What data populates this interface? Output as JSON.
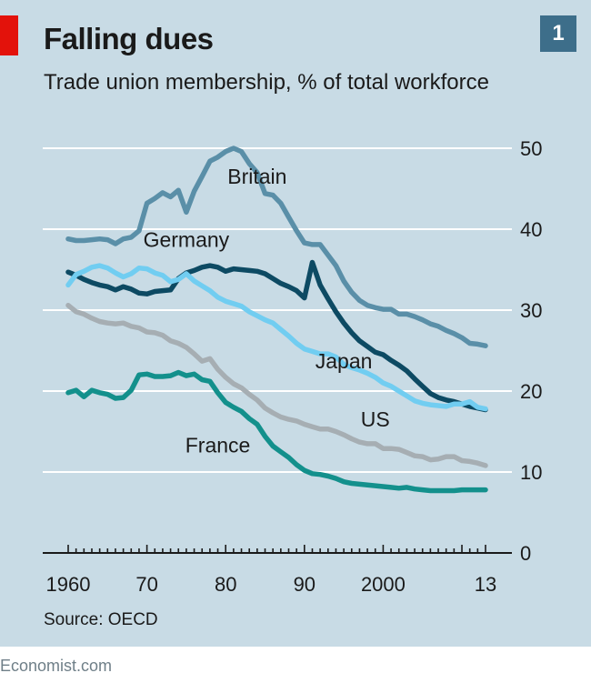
{
  "header": {
    "title": "Falling dues",
    "subtitle": "Trade union membership, % of total workforce",
    "badge": "1"
  },
  "footer": {
    "source": "Source: OECD",
    "credit": "Economist.com"
  },
  "colors": {
    "background": "#c8dbe5",
    "accent_red": "#e3120b",
    "badge": "#3d6e8a",
    "Britain": "#5a8fa8",
    "Germany": "#0d4a63",
    "Japan": "#71cdf1",
    "US": "#a6aeb3",
    "France": "#13908c"
  },
  "chart_data": {
    "type": "line",
    "title": "Falling dues",
    "subtitle": "Trade union membership, % of total workforce",
    "x_range": [
      1960,
      2013
    ],
    "ylim": [
      0,
      50
    ],
    "y_ticks": [
      0,
      10,
      20,
      30,
      40,
      50
    ],
    "x_tick_labels": [
      {
        "x": 1960,
        "label": "1960"
      },
      {
        "x": 1970,
        "label": "70"
      },
      {
        "x": 1980,
        "label": "80"
      },
      {
        "x": 1990,
        "label": "90"
      },
      {
        "x": 2000,
        "label": "2000"
      },
      {
        "x": 2013,
        "label": "13"
      }
    ],
    "y_axis_side": "right",
    "grid": true,
    "series": [
      {
        "name": "Britain",
        "label_at": [
          1984,
          46.5
        ],
        "points": [
          [
            1960,
            38.8
          ],
          [
            1961,
            38.6
          ],
          [
            1962,
            38.6
          ],
          [
            1963,
            38.7
          ],
          [
            1964,
            38.8
          ],
          [
            1965,
            38.7
          ],
          [
            1966,
            38.2
          ],
          [
            1967,
            38.8
          ],
          [
            1968,
            39.0
          ],
          [
            1969,
            39.8
          ],
          [
            1970,
            43.2
          ],
          [
            1971,
            43.8
          ],
          [
            1972,
            44.5
          ],
          [
            1973,
            44.0
          ],
          [
            1974,
            44.8
          ],
          [
            1975,
            42.1
          ],
          [
            1976,
            44.7
          ],
          [
            1977,
            46.5
          ],
          [
            1978,
            48.4
          ],
          [
            1979,
            48.9
          ],
          [
            1980,
            49.6
          ],
          [
            1981,
            50.0
          ],
          [
            1982,
            49.6
          ],
          [
            1983,
            48.1
          ],
          [
            1984,
            47.0
          ],
          [
            1985,
            44.4
          ],
          [
            1986,
            44.2
          ],
          [
            1987,
            43.2
          ],
          [
            1988,
            41.5
          ],
          [
            1989,
            39.8
          ],
          [
            1990,
            38.3
          ],
          [
            1991,
            38.1
          ],
          [
            1992,
            38.1
          ],
          [
            1993,
            36.8
          ],
          [
            1994,
            35.5
          ],
          [
            1995,
            33.6
          ],
          [
            1996,
            32.2
          ],
          [
            1997,
            31.2
          ],
          [
            1998,
            30.6
          ],
          [
            1999,
            30.3
          ],
          [
            2000,
            30.1
          ],
          [
            2001,
            30.1
          ],
          [
            2002,
            29.5
          ],
          [
            2003,
            29.5
          ],
          [
            2004,
            29.2
          ],
          [
            2005,
            28.8
          ],
          [
            2006,
            28.3
          ],
          [
            2007,
            28.0
          ],
          [
            2008,
            27.5
          ],
          [
            2009,
            27.1
          ],
          [
            2010,
            26.6
          ],
          [
            2011,
            25.9
          ],
          [
            2012,
            25.8
          ],
          [
            2013,
            25.6
          ]
        ]
      },
      {
        "name": "Germany",
        "label_at": [
          1975,
          38.7
        ],
        "points": [
          [
            1960,
            34.7
          ],
          [
            1961,
            34.3
          ],
          [
            1962,
            33.8
          ],
          [
            1963,
            33.4
          ],
          [
            1964,
            33.1
          ],
          [
            1965,
            32.9
          ],
          [
            1966,
            32.5
          ],
          [
            1967,
            32.9
          ],
          [
            1968,
            32.6
          ],
          [
            1969,
            32.1
          ],
          [
            1970,
            32.0
          ],
          [
            1971,
            32.3
          ],
          [
            1972,
            32.4
          ],
          [
            1973,
            32.5
          ],
          [
            1974,
            33.9
          ],
          [
            1975,
            34.6
          ],
          [
            1976,
            34.9
          ],
          [
            1977,
            35.3
          ],
          [
            1978,
            35.5
          ],
          [
            1979,
            35.3
          ],
          [
            1980,
            34.8
          ],
          [
            1981,
            35.1
          ],
          [
            1982,
            35.0
          ],
          [
            1983,
            34.9
          ],
          [
            1984,
            34.8
          ],
          [
            1985,
            34.5
          ],
          [
            1986,
            33.9
          ],
          [
            1987,
            33.3
          ],
          [
            1988,
            32.9
          ],
          [
            1989,
            32.4
          ],
          [
            1990,
            31.5
          ],
          [
            1991,
            35.9
          ],
          [
            1992,
            33.1
          ],
          [
            1993,
            31.4
          ],
          [
            1994,
            29.8
          ],
          [
            1995,
            28.4
          ],
          [
            1996,
            27.2
          ],
          [
            1997,
            26.2
          ],
          [
            1998,
            25.5
          ],
          [
            1999,
            24.8
          ],
          [
            2000,
            24.5
          ],
          [
            2001,
            23.8
          ],
          [
            2002,
            23.2
          ],
          [
            2003,
            22.5
          ],
          [
            2004,
            21.5
          ],
          [
            2005,
            20.6
          ],
          [
            2006,
            19.7
          ],
          [
            2007,
            19.2
          ],
          [
            2008,
            18.9
          ],
          [
            2009,
            18.7
          ],
          [
            2010,
            18.4
          ],
          [
            2011,
            18.1
          ],
          [
            2012,
            17.9
          ],
          [
            2013,
            17.7
          ]
        ]
      },
      {
        "name": "Japan",
        "label_at": [
          1995,
          23.7
        ],
        "points": [
          [
            1960,
            33.1
          ],
          [
            1961,
            34.4
          ],
          [
            1962,
            34.8
          ],
          [
            1963,
            35.3
          ],
          [
            1964,
            35.5
          ],
          [
            1965,
            35.2
          ],
          [
            1966,
            34.6
          ],
          [
            1967,
            34.1
          ],
          [
            1968,
            34.5
          ],
          [
            1969,
            35.2
          ],
          [
            1970,
            35.1
          ],
          [
            1971,
            34.6
          ],
          [
            1972,
            34.3
          ],
          [
            1973,
            33.5
          ],
          [
            1974,
            33.8
          ],
          [
            1975,
            34.5
          ],
          [
            1976,
            33.6
          ],
          [
            1977,
            33.0
          ],
          [
            1978,
            32.4
          ],
          [
            1979,
            31.6
          ],
          [
            1980,
            31.1
          ],
          [
            1981,
            30.8
          ],
          [
            1982,
            30.5
          ],
          [
            1983,
            29.8
          ],
          [
            1984,
            29.3
          ],
          [
            1985,
            28.8
          ],
          [
            1986,
            28.4
          ],
          [
            1987,
            27.6
          ],
          [
            1988,
            26.8
          ],
          [
            1989,
            25.9
          ],
          [
            1990,
            25.2
          ],
          [
            1991,
            24.9
          ],
          [
            1992,
            24.6
          ],
          [
            1993,
            24.6
          ],
          [
            1994,
            24.2
          ],
          [
            1995,
            23.3
          ],
          [
            1996,
            22.9
          ],
          [
            1997,
            22.6
          ],
          [
            1998,
            22.2
          ],
          [
            1999,
            21.7
          ],
          [
            2000,
            21.0
          ],
          [
            2001,
            20.6
          ],
          [
            2002,
            20.0
          ],
          [
            2003,
            19.4
          ],
          [
            2004,
            18.8
          ],
          [
            2005,
            18.5
          ],
          [
            2006,
            18.3
          ],
          [
            2007,
            18.2
          ],
          [
            2008,
            18.1
          ],
          [
            2009,
            18.4
          ],
          [
            2010,
            18.4
          ],
          [
            2011,
            18.7
          ],
          [
            2012,
            18.0
          ],
          [
            2013,
            17.8
          ]
        ]
      },
      {
        "name": "US",
        "label_at": [
          1999,
          16.5
        ],
        "points": [
          [
            1960,
            30.6
          ],
          [
            1961,
            29.8
          ],
          [
            1962,
            29.5
          ],
          [
            1963,
            29.0
          ],
          [
            1964,
            28.6
          ],
          [
            1965,
            28.4
          ],
          [
            1966,
            28.3
          ],
          [
            1967,
            28.4
          ],
          [
            1968,
            28.0
          ],
          [
            1969,
            27.8
          ],
          [
            1970,
            27.3
          ],
          [
            1971,
            27.2
          ],
          [
            1972,
            26.9
          ],
          [
            1973,
            26.2
          ],
          [
            1974,
            25.9
          ],
          [
            1975,
            25.4
          ],
          [
            1976,
            24.6
          ],
          [
            1977,
            23.7
          ],
          [
            1978,
            24.0
          ],
          [
            1979,
            22.7
          ],
          [
            1980,
            21.7
          ],
          [
            1981,
            20.9
          ],
          [
            1982,
            20.4
          ],
          [
            1983,
            19.6
          ],
          [
            1984,
            18.9
          ],
          [
            1985,
            17.9
          ],
          [
            1986,
            17.3
          ],
          [
            1987,
            16.8
          ],
          [
            1988,
            16.5
          ],
          [
            1989,
            16.3
          ],
          [
            1990,
            15.9
          ],
          [
            1991,
            15.6
          ],
          [
            1992,
            15.3
          ],
          [
            1993,
            15.3
          ],
          [
            1994,
            15.0
          ],
          [
            1995,
            14.6
          ],
          [
            1996,
            14.1
          ],
          [
            1997,
            13.7
          ],
          [
            1998,
            13.5
          ],
          [
            1999,
            13.5
          ],
          [
            2000,
            12.9
          ],
          [
            2001,
            12.9
          ],
          [
            2002,
            12.8
          ],
          [
            2003,
            12.4
          ],
          [
            2004,
            12.0
          ],
          [
            2005,
            11.9
          ],
          [
            2006,
            11.5
          ],
          [
            2007,
            11.6
          ],
          [
            2008,
            11.9
          ],
          [
            2009,
            11.9
          ],
          [
            2010,
            11.4
          ],
          [
            2011,
            11.3
          ],
          [
            2012,
            11.1
          ],
          [
            2013,
            10.8
          ]
        ]
      },
      {
        "name": "France",
        "label_at": [
          1979,
          13.3
        ],
        "points": [
          [
            1960,
            19.8
          ],
          [
            1961,
            20.1
          ],
          [
            1962,
            19.3
          ],
          [
            1963,
            20.1
          ],
          [
            1964,
            19.8
          ],
          [
            1965,
            19.6
          ],
          [
            1966,
            19.1
          ],
          [
            1967,
            19.2
          ],
          [
            1968,
            20.1
          ],
          [
            1969,
            22.0
          ],
          [
            1970,
            22.1
          ],
          [
            1971,
            21.8
          ],
          [
            1972,
            21.8
          ],
          [
            1973,
            21.9
          ],
          [
            1974,
            22.3
          ],
          [
            1975,
            21.9
          ],
          [
            1976,
            22.1
          ],
          [
            1977,
            21.4
          ],
          [
            1978,
            21.2
          ],
          [
            1979,
            19.8
          ],
          [
            1980,
            18.6
          ],
          [
            1981,
            18.0
          ],
          [
            1982,
            17.5
          ],
          [
            1983,
            16.6
          ],
          [
            1984,
            15.9
          ],
          [
            1985,
            14.4
          ],
          [
            1986,
            13.2
          ],
          [
            1987,
            12.5
          ],
          [
            1988,
            11.8
          ],
          [
            1989,
            10.9
          ],
          [
            1990,
            10.2
          ],
          [
            1991,
            9.8
          ],
          [
            1992,
            9.7
          ],
          [
            1993,
            9.5
          ],
          [
            1994,
            9.2
          ],
          [
            1995,
            8.8
          ],
          [
            1996,
            8.6
          ],
          [
            1997,
            8.5
          ],
          [
            1998,
            8.4
          ],
          [
            1999,
            8.3
          ],
          [
            2000,
            8.2
          ],
          [
            2001,
            8.1
          ],
          [
            2002,
            8.0
          ],
          [
            2003,
            8.1
          ],
          [
            2004,
            7.9
          ],
          [
            2005,
            7.8
          ],
          [
            2006,
            7.7
          ],
          [
            2007,
            7.7
          ],
          [
            2008,
            7.7
          ],
          [
            2009,
            7.7
          ],
          [
            2010,
            7.8
          ],
          [
            2011,
            7.8
          ],
          [
            2012,
            7.8
          ],
          [
            2013,
            7.8
          ]
        ]
      }
    ]
  }
}
